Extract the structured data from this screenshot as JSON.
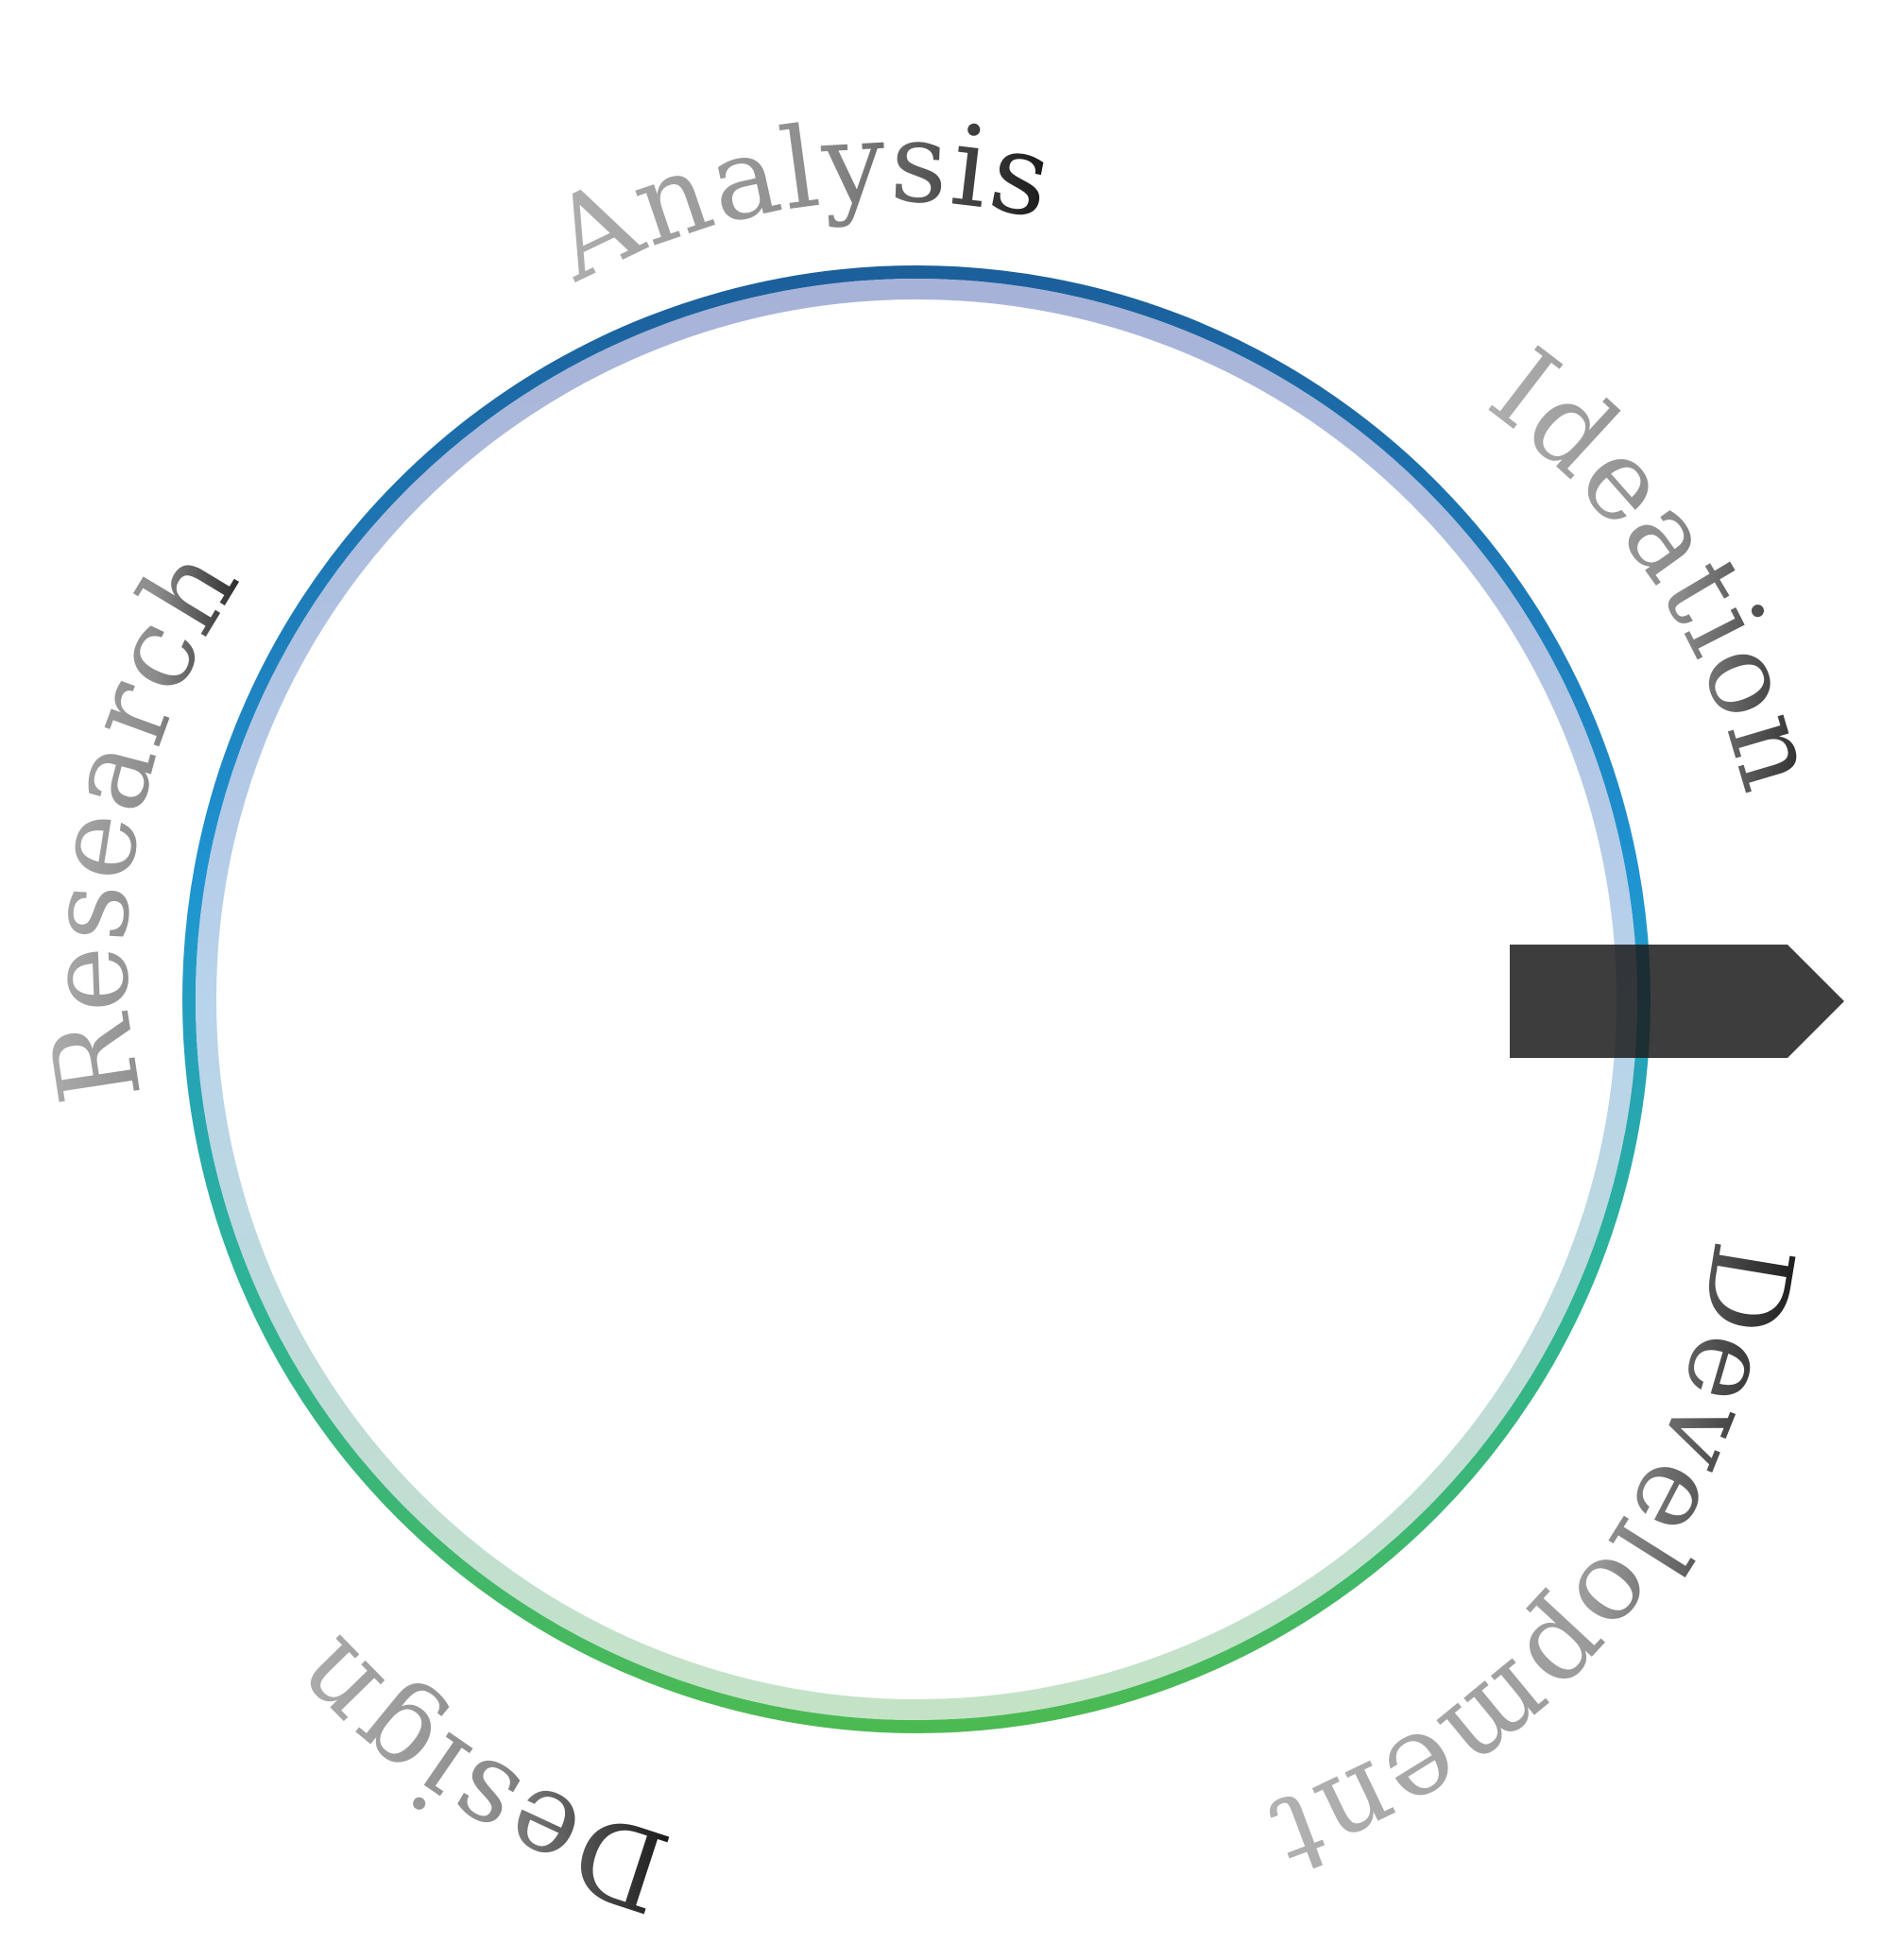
{
  "diagram": {
    "stages": [
      {
        "id": "analysis",
        "label": "Analysis"
      },
      {
        "id": "ideation",
        "label": "Ideation"
      },
      {
        "id": "development",
        "label": "Development"
      },
      {
        "id": "design",
        "label": "Design"
      },
      {
        "id": "research",
        "label": "Research"
      }
    ],
    "colors": {
      "ring_top": "#1b5f9b",
      "ring_mid": "#1f94d2",
      "ring_low": "#2cb39a",
      "ring_bottom": "#4cba52",
      "inner_top": "#a7b2d8",
      "inner_mid": "#b8d3ec",
      "inner_bottom": "#c4e3c6",
      "label_light": "#b3b3b3",
      "label_dark": "#111111",
      "arrow": "#1b1b1b"
    }
  }
}
